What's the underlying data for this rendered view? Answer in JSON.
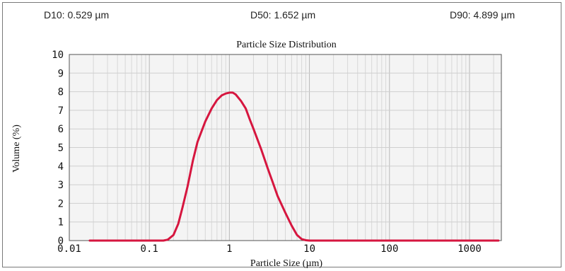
{
  "stats": {
    "d10": "D10: 0.529 µm",
    "d50": "D50: 1.652 µm",
    "d90": "D90: 4.899 µm"
  },
  "chart_data": {
    "type": "line",
    "title": "Particle Size Distribution",
    "xlabel": "Particle Size (µm)",
    "ylabel": "Volume (%)",
    "xscale": "log",
    "xlim": [
      0.01,
      2500
    ],
    "ylim": [
      0,
      10
    ],
    "x_ticks": [
      0.01,
      0.1,
      1,
      10,
      100,
      1000
    ],
    "x_tick_labels": [
      "0.01",
      "0.1",
      "1",
      "10",
      "100",
      "1000"
    ],
    "y_ticks": [
      0,
      1,
      2,
      3,
      4,
      5,
      6,
      7,
      8,
      9,
      10
    ],
    "grid": true,
    "line_color": "#d6163f",
    "plot_background": "#f4f4f4",
    "series": [
      {
        "x": [
          0.018,
          0.05,
          0.1,
          0.15,
          0.17,
          0.2,
          0.23,
          0.26,
          0.3,
          0.35,
          0.4,
          0.5,
          0.6,
          0.7,
          0.8,
          0.9,
          1.0,
          1.1,
          1.2,
          1.4,
          1.6,
          1.8,
          2.0,
          2.5,
          3.0,
          3.5,
          4.0,
          5.0,
          6.0,
          7.0,
          8.0,
          9.0,
          10,
          12,
          20,
          100,
          1000,
          2300
        ],
        "y": [
          0,
          0,
          0,
          0,
          0.05,
          0.3,
          0.9,
          1.8,
          2.9,
          4.3,
          5.3,
          6.4,
          7.1,
          7.55,
          7.8,
          7.9,
          7.95,
          7.95,
          7.85,
          7.5,
          7.1,
          6.5,
          6.0,
          4.9,
          3.9,
          3.1,
          2.4,
          1.5,
          0.8,
          0.3,
          0.08,
          0.02,
          0,
          0,
          0,
          0,
          0,
          0
        ]
      }
    ]
  }
}
